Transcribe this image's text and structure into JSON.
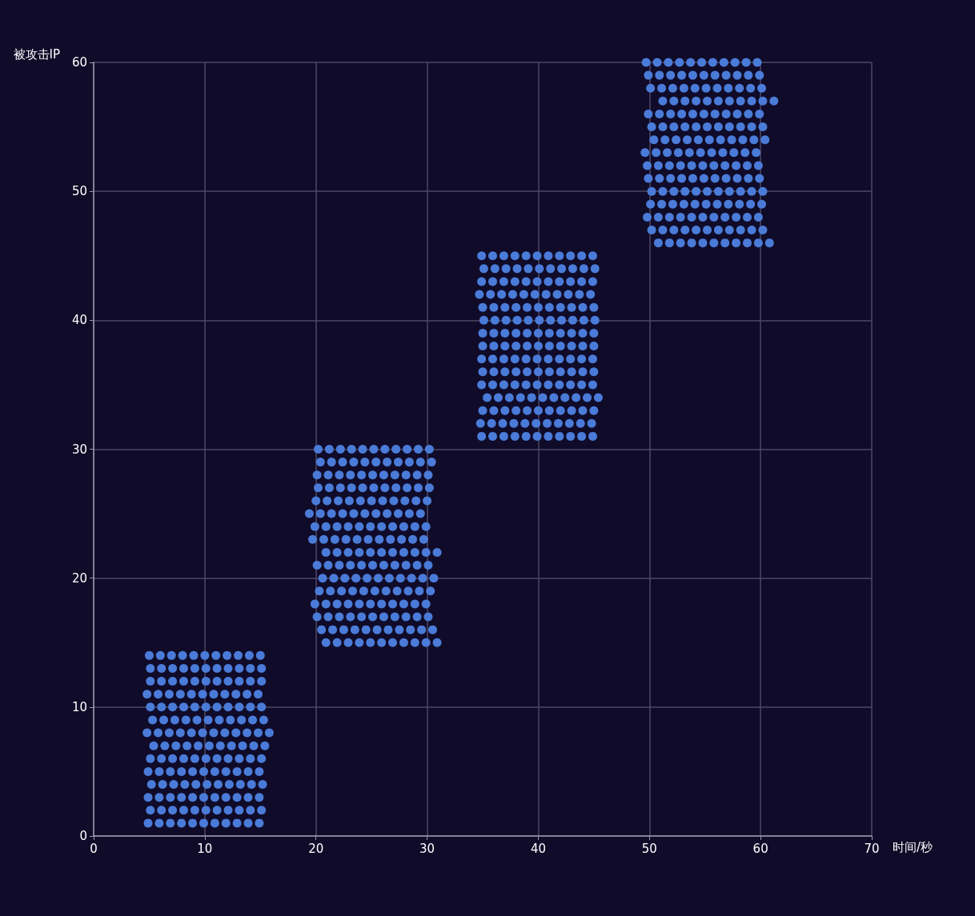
{
  "chart_data": {
    "type": "scatter",
    "xlabel": "时间/秒",
    "ylabel": "被攻击IP",
    "xlim": [
      0,
      70
    ],
    "xticks": [
      0,
      10,
      20,
      30,
      40,
      50,
      60,
      70
    ],
    "ylim": [
      0,
      60
    ],
    "yticks": [
      0,
      10,
      20,
      30,
      40,
      50,
      60
    ],
    "grid": true,
    "marker": "circle",
    "color": "#4a7bd8",
    "x": [
      5,
      6,
      7,
      8,
      9,
      10,
      11,
      12,
      13,
      14,
      15,
      5.1,
      6.1,
      7.1,
      8.1,
      9.1,
      10.1,
      11.1,
      12.1,
      13.1,
      14.1,
      15.1,
      5.1,
      6.1,
      7.1,
      8.1,
      9.1,
      10.1,
      11.1,
      12.1,
      13.1,
      14.1,
      15.1,
      4.8,
      5.8,
      6.8,
      7.8,
      8.8,
      9.8,
      10.8,
      11.8,
      12.8,
      13.8,
      14.8,
      5.1,
      6.1,
      7.1,
      8.1,
      9.1,
      10.1,
      11.1,
      12.1,
      13.1,
      14.1,
      15.1,
      5.3,
      6.3,
      7.3,
      8.3,
      9.3,
      10.3,
      11.3,
      12.3,
      13.3,
      14.3,
      15.3,
      4.8,
      5.8,
      6.8,
      7.8,
      8.8,
      9.8,
      10.8,
      11.8,
      12.8,
      13.8,
      14.8,
      15.8,
      5.4,
      6.4,
      7.4,
      8.4,
      9.4,
      10.4,
      11.4,
      12.4,
      13.4,
      14.4,
      15.4,
      5.1,
      6.1,
      7.1,
      8.1,
      9.1,
      10.1,
      11.1,
      12.1,
      13.1,
      14.1,
      15.1,
      4.9,
      5.9,
      6.9,
      7.9,
      8.9,
      9.9,
      10.9,
      11.9,
      12.9,
      13.9,
      14.9,
      5.2,
      6.2,
      7.2,
      8.2,
      9.2,
      10.2,
      11.2,
      12.2,
      13.2,
      14.2,
      15.2,
      4.9,
      5.9,
      6.9,
      7.9,
      8.9,
      9.9,
      10.9,
      11.9,
      12.9,
      13.9,
      14.9,
      5.1,
      6.1,
      7.1,
      8.1,
      9.1,
      10.1,
      11.1,
      12.1,
      13.1,
      14.1,
      15.1,
      4.9,
      5.9,
      6.9,
      7.9,
      8.9,
      9.9,
      10.9,
      11.9,
      12.9,
      13.9,
      14.9,
      20.2,
      21.2,
      22.2,
      23.2,
      24.2,
      25.2,
      26.2,
      27.2,
      28.2,
      29.2,
      30.2,
      20.4,
      21.4,
      22.4,
      23.4,
      24.4,
      25.4,
      26.4,
      27.4,
      28.4,
      29.4,
      30.4,
      20.1,
      21.1,
      22.1,
      23.1,
      24.1,
      25.1,
      26.1,
      27.1,
      28.1,
      29.1,
      30.1,
      20.2,
      21.2,
      22.2,
      23.2,
      24.2,
      25.2,
      26.2,
      27.2,
      28.2,
      29.2,
      30.2,
      20,
      21,
      22,
      23,
      24,
      25,
      26,
      27,
      28,
      29,
      30,
      19.4,
      20.4,
      21.4,
      22.4,
      23.4,
      24.4,
      25.4,
      26.4,
      27.4,
      28.4,
      29.4,
      19.9,
      20.9,
      21.9,
      22.9,
      23.9,
      24.9,
      25.9,
      26.9,
      27.9,
      28.9,
      29.9,
      19.7,
      20.7,
      21.7,
      22.7,
      23.7,
      24.7,
      25.7,
      26.7,
      27.7,
      28.7,
      29.7,
      20.9,
      21.9,
      22.9,
      23.9,
      24.9,
      25.9,
      26.9,
      27.9,
      28.9,
      29.9,
      30.9,
      20.1,
      21.1,
      22.1,
      23.1,
      24.1,
      25.1,
      26.1,
      27.1,
      28.1,
      29.1,
      30.1,
      20.6,
      21.6,
      22.6,
      23.6,
      24.6,
      25.6,
      26.6,
      27.6,
      28.6,
      29.6,
      30.6,
      20.3,
      21.3,
      22.3,
      23.3,
      24.3,
      25.3,
      26.3,
      27.3,
      28.3,
      29.3,
      30.3,
      19.9,
      20.9,
      21.9,
      22.9,
      23.9,
      24.9,
      25.9,
      26.9,
      27.9,
      28.9,
      29.9,
      20.1,
      21.1,
      22.1,
      23.1,
      24.1,
      25.1,
      26.1,
      27.1,
      28.1,
      29.1,
      30.1,
      20.5,
      21.5,
      22.5,
      23.5,
      24.5,
      25.5,
      26.5,
      27.5,
      28.5,
      29.5,
      30.5,
      20.9,
      21.9,
      22.9,
      23.9,
      24.9,
      25.9,
      26.9,
      27.9,
      28.9,
      29.9,
      30.9,
      34.9,
      35.9,
      36.9,
      37.9,
      38.9,
      39.9,
      40.9,
      41.9,
      42.9,
      43.9,
      44.9,
      35.1,
      36.1,
      37.1,
      38.1,
      39.1,
      40.1,
      41.1,
      42.1,
      43.1,
      44.1,
      45.1,
      34.9,
      35.9,
      36.9,
      37.9,
      38.9,
      39.9,
      40.9,
      41.9,
      42.9,
      43.9,
      44.9,
      34.7,
      35.7,
      36.7,
      37.7,
      38.7,
      39.7,
      40.7,
      41.7,
      42.7,
      43.7,
      44.7,
      35,
      36,
      37,
      38,
      39,
      40,
      41,
      42,
      43,
      44,
      45,
      35.1,
      36.1,
      37.1,
      38.1,
      39.1,
      40.1,
      41.1,
      42.1,
      43.1,
      44.1,
      45.1,
      35,
      36,
      37,
      38,
      39,
      40,
      41,
      42,
      43,
      44,
      45,
      35,
      36,
      37,
      38,
      39,
      40,
      41,
      42,
      43,
      44,
      45,
      34.9,
      35.9,
      36.9,
      37.9,
      38.9,
      39.9,
      40.9,
      41.9,
      42.9,
      43.9,
      44.9,
      35,
      36,
      37,
      38,
      39,
      40,
      41,
      42,
      43,
      44,
      45,
      34.9,
      35.9,
      36.9,
      37.9,
      38.9,
      39.9,
      40.9,
      41.9,
      42.9,
      43.9,
      44.9,
      35.4,
      36.4,
      37.4,
      38.4,
      39.4,
      40.4,
      41.4,
      42.4,
      43.4,
      44.4,
      45.4,
      35,
      36,
      37,
      38,
      39,
      40,
      41,
      42,
      43,
      44,
      45,
      34.8,
      35.8,
      36.8,
      37.8,
      38.8,
      39.8,
      40.8,
      41.8,
      42.8,
      43.8,
      44.8,
      34.9,
      35.9,
      36.9,
      37.9,
      38.9,
      39.9,
      40.9,
      41.9,
      42.9,
      43.9,
      44.9,
      49.7,
      50.7,
      51.7,
      52.7,
      53.7,
      54.7,
      55.7,
      56.7,
      57.7,
      58.7,
      59.7,
      49.9,
      50.9,
      51.9,
      52.9,
      53.9,
      54.9,
      55.9,
      56.9,
      57.9,
      58.9,
      59.9,
      50.1,
      51.1,
      52.1,
      53.1,
      54.1,
      55.1,
      56.1,
      57.1,
      58.1,
      59.1,
      60.1,
      51.2,
      52.2,
      53.2,
      54.2,
      55.2,
      56.2,
      57.2,
      58.2,
      59.2,
      60.2,
      61.2,
      49.9,
      50.9,
      51.9,
      52.9,
      53.9,
      54.9,
      55.9,
      56.9,
      57.9,
      58.9,
      59.9,
      50.2,
      51.2,
      52.2,
      53.2,
      54.2,
      55.2,
      56.2,
      57.2,
      58.2,
      59.2,
      60.2,
      50.4,
      51.4,
      52.4,
      53.4,
      54.4,
      55.4,
      56.4,
      57.4,
      58.4,
      59.4,
      60.4,
      49.6,
      50.6,
      51.6,
      52.6,
      53.6,
      54.6,
      55.6,
      56.6,
      57.6,
      58.6,
      59.6,
      49.8,
      50.8,
      51.8,
      52.8,
      53.8,
      54.8,
      55.8,
      56.8,
      57.8,
      58.8,
      59.8,
      49.9,
      50.9,
      51.9,
      52.9,
      53.9,
      54.9,
      55.9,
      56.9,
      57.9,
      58.9,
      59.9,
      50.2,
      51.2,
      52.2,
      53.2,
      54.2,
      55.2,
      56.2,
      57.2,
      58.2,
      59.2,
      60.2,
      50.1,
      51.1,
      52.1,
      53.1,
      54.1,
      55.1,
      56.1,
      57.1,
      58.1,
      59.1,
      60.1,
      49.8,
      50.8,
      51.8,
      52.8,
      53.8,
      54.8,
      55.8,
      56.8,
      57.8,
      58.8,
      59.8,
      50.2,
      51.2,
      52.2,
      53.2,
      54.2,
      55.2,
      56.2,
      57.2,
      58.2,
      59.2,
      60.2,
      50.8,
      51.8,
      52.8,
      53.8,
      54.8,
      55.8,
      56.8,
      57.8,
      58.8,
      59.8,
      60.8
    ],
    "values": [
      14,
      14,
      14,
      14,
      14,
      14,
      14,
      14,
      14,
      14,
      14,
      13,
      13,
      13,
      13,
      13,
      13,
      13,
      13,
      13,
      13,
      13,
      12,
      12,
      12,
      12,
      12,
      12,
      12,
      12,
      12,
      12,
      12,
      11,
      11,
      11,
      11,
      11,
      11,
      11,
      11,
      11,
      11,
      11,
      10,
      10,
      10,
      10,
      10,
      10,
      10,
      10,
      10,
      10,
      10,
      9,
      9,
      9,
      9,
      9,
      9,
      9,
      9,
      9,
      9,
      9,
      8,
      8,
      8,
      8,
      8,
      8,
      8,
      8,
      8,
      8,
      8,
      8,
      7,
      7,
      7,
      7,
      7,
      7,
      7,
      7,
      7,
      7,
      7,
      6,
      6,
      6,
      6,
      6,
      6,
      6,
      6,
      6,
      6,
      6,
      5,
      5,
      5,
      5,
      5,
      5,
      5,
      5,
      5,
      5,
      5,
      4,
      4,
      4,
      4,
      4,
      4,
      4,
      4,
      4,
      4,
      4,
      3,
      3,
      3,
      3,
      3,
      3,
      3,
      3,
      3,
      3,
      3,
      2,
      2,
      2,
      2,
      2,
      2,
      2,
      2,
      2,
      2,
      2,
      1,
      1,
      1,
      1,
      1,
      1,
      1,
      1,
      1,
      1,
      1,
      30,
      30,
      30,
      30,
      30,
      30,
      30,
      30,
      30,
      30,
      30,
      29,
      29,
      29,
      29,
      29,
      29,
      29,
      29,
      29,
      29,
      29,
      28,
      28,
      28,
      28,
      28,
      28,
      28,
      28,
      28,
      28,
      28,
      27,
      27,
      27,
      27,
      27,
      27,
      27,
      27,
      27,
      27,
      27,
      26,
      26,
      26,
      26,
      26,
      26,
      26,
      26,
      26,
      26,
      26,
      25,
      25,
      25,
      25,
      25,
      25,
      25,
      25,
      25,
      25,
      25,
      24,
      24,
      24,
      24,
      24,
      24,
      24,
      24,
      24,
      24,
      24,
      23,
      23,
      23,
      23,
      23,
      23,
      23,
      23,
      23,
      23,
      23,
      22,
      22,
      22,
      22,
      22,
      22,
      22,
      22,
      22,
      22,
      22,
      21,
      21,
      21,
      21,
      21,
      21,
      21,
      21,
      21,
      21,
      21,
      20,
      20,
      20,
      20,
      20,
      20,
      20,
      20,
      20,
      20,
      20,
      19,
      19,
      19,
      19,
      19,
      19,
      19,
      19,
      19,
      19,
      19,
      18,
      18,
      18,
      18,
      18,
      18,
      18,
      18,
      18,
      18,
      18,
      17,
      17,
      17,
      17,
      17,
      17,
      17,
      17,
      17,
      17,
      17,
      16,
      16,
      16,
      16,
      16,
      16,
      16,
      16,
      16,
      16,
      16,
      15,
      15,
      15,
      15,
      15,
      15,
      15,
      15,
      15,
      15,
      15,
      45,
      45,
      45,
      45,
      45,
      45,
      45,
      45,
      45,
      45,
      45,
      44,
      44,
      44,
      44,
      44,
      44,
      44,
      44,
      44,
      44,
      44,
      43,
      43,
      43,
      43,
      43,
      43,
      43,
      43,
      43,
      43,
      43,
      42,
      42,
      42,
      42,
      42,
      42,
      42,
      42,
      42,
      42,
      42,
      41,
      41,
      41,
      41,
      41,
      41,
      41,
      41,
      41,
      41,
      41,
      40,
      40,
      40,
      40,
      40,
      40,
      40,
      40,
      40,
      40,
      40,
      39,
      39,
      39,
      39,
      39,
      39,
      39,
      39,
      39,
      39,
      39,
      38,
      38,
      38,
      38,
      38,
      38,
      38,
      38,
      38,
      38,
      38,
      37,
      37,
      37,
      37,
      37,
      37,
      37,
      37,
      37,
      37,
      37,
      36,
      36,
      36,
      36,
      36,
      36,
      36,
      36,
      36,
      36,
      36,
      35,
      35,
      35,
      35,
      35,
      35,
      35,
      35,
      35,
      35,
      35,
      34,
      34,
      34,
      34,
      34,
      34,
      34,
      34,
      34,
      34,
      34,
      33,
      33,
      33,
      33,
      33,
      33,
      33,
      33,
      33,
      33,
      33,
      32,
      32,
      32,
      32,
      32,
      32,
      32,
      32,
      32,
      32,
      32,
      31,
      31,
      31,
      31,
      31,
      31,
      31,
      31,
      31,
      31,
      31,
      60,
      60,
      60,
      60,
      60,
      60,
      60,
      60,
      60,
      60,
      60,
      59,
      59,
      59,
      59,
      59,
      59,
      59,
      59,
      59,
      59,
      59,
      58,
      58,
      58,
      58,
      58,
      58,
      58,
      58,
      58,
      58,
      58,
      57,
      57,
      57,
      57,
      57,
      57,
      57,
      57,
      57,
      57,
      57,
      56,
      56,
      56,
      56,
      56,
      56,
      56,
      56,
      56,
      56,
      56,
      55,
      55,
      55,
      55,
      55,
      55,
      55,
      55,
      55,
      55,
      55,
      54,
      54,
      54,
      54,
      54,
      54,
      54,
      54,
      54,
      54,
      54,
      53,
      53,
      53,
      53,
      53,
      53,
      53,
      53,
      53,
      53,
      53,
      52,
      52,
      52,
      52,
      52,
      52,
      52,
      52,
      52,
      52,
      52,
      51,
      51,
      51,
      51,
      51,
      51,
      51,
      51,
      51,
      51,
      51,
      50,
      50,
      50,
      50,
      50,
      50,
      50,
      50,
      50,
      50,
      50,
      49,
      49,
      49,
      49,
      49,
      49,
      49,
      49,
      49,
      49,
      49,
      48,
      48,
      48,
      48,
      48,
      48,
      48,
      48,
      48,
      48,
      48,
      47,
      47,
      47,
      47,
      47,
      47,
      47,
      47,
      47,
      47,
      47,
      46,
      46,
      46,
      46,
      46,
      46,
      46,
      46,
      46,
      46,
      46
    ]
  }
}
